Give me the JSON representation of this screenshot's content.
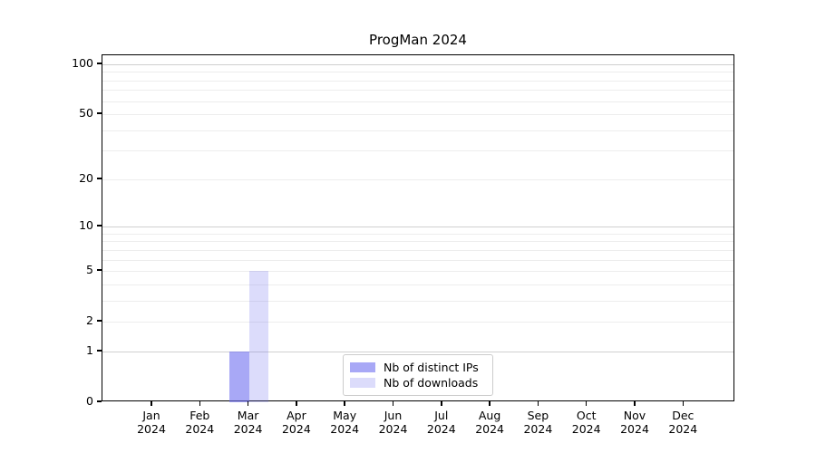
{
  "title": "ProgMan 2024",
  "chart_data": {
    "type": "bar",
    "title": "ProgMan 2024",
    "categories": [
      "Jan",
      "Feb",
      "Mar",
      "Apr",
      "May",
      "Jun",
      "Jul",
      "Aug",
      "Sep",
      "Oct",
      "Nov",
      "Dec"
    ],
    "category_year": "2024",
    "series": [
      {
        "name": "Nb of distinct IPs",
        "color": "rgba(110,110,240,0.60)",
        "values": [
          0,
          0,
          1,
          0,
          0,
          0,
          0,
          0,
          0,
          0,
          0,
          0
        ]
      },
      {
        "name": "Nb of downloads",
        "color": "rgba(110,110,240,0.24)",
        "values": [
          0,
          0,
          5,
          0,
          0,
          0,
          0,
          0,
          0,
          0,
          0,
          0
        ]
      }
    ],
    "xlabel": "",
    "ylabel": "",
    "yscale": "log1p",
    "ylim": [
      0,
      113
    ],
    "yticks": [
      0,
      1,
      2,
      5,
      10,
      20,
      50,
      100
    ],
    "ygrid_major": [
      1,
      10,
      100
    ],
    "ygrid_minor": [
      2,
      3,
      4,
      5,
      6,
      7,
      8,
      9,
      20,
      30,
      40,
      50,
      60,
      70,
      80,
      90
    ],
    "grid": true,
    "legend_position": "lower center"
  },
  "legend": {
    "items": [
      {
        "label": "Nb of distinct IPs"
      },
      {
        "label": "Nb of downloads"
      }
    ]
  }
}
